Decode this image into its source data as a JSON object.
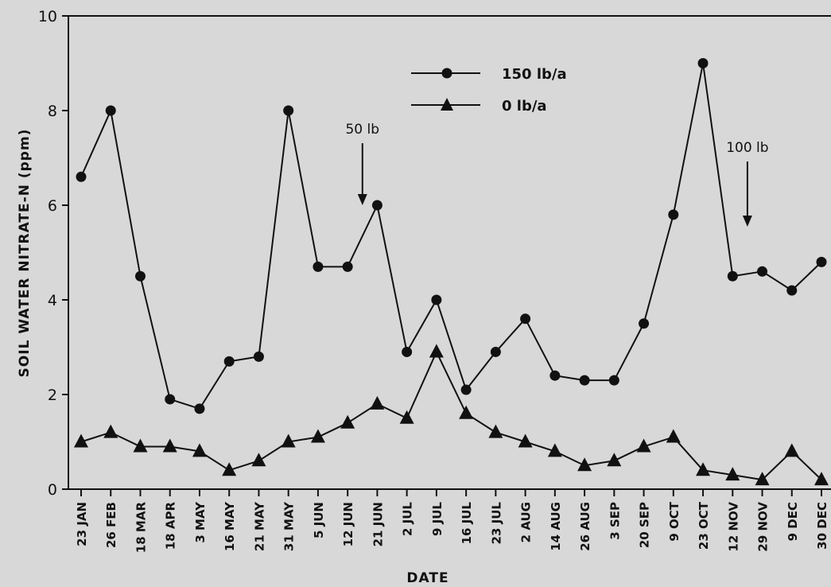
{
  "chart_data": {
    "type": "line",
    "xlabel": "DATE",
    "ylabel": "SOIL WATER NITRATE-N (ppm)",
    "ylim": [
      0,
      10
    ],
    "yticks": [
      0,
      2,
      4,
      6,
      8,
      10
    ],
    "grid": false,
    "legend_position": "top-center",
    "categories": [
      "23 JAN",
      "26 FEB",
      "18 MAR",
      "18 APR",
      "3 MAY",
      "16 MAY",
      "21 MAY",
      "31 MAY",
      "5 JUN",
      "12 JUN",
      "21 JUN",
      "2 JUL",
      "9 JUL",
      "16 JUL",
      "23 JUL",
      "2 AUG",
      "14 AUG",
      "26 AUG",
      "3 SEP",
      "20 SEP",
      "9 OCT",
      "23 OCT",
      "12 NOV",
      "29 NOV",
      "9 DEC",
      "30 DEC"
    ],
    "series": [
      {
        "name": "150 lb/a",
        "marker": "circle",
        "values": [
          6.6,
          8.0,
          4.5,
          1.9,
          1.7,
          2.7,
          2.8,
          8.0,
          4.7,
          4.7,
          6.0,
          2.9,
          4.0,
          2.1,
          2.9,
          3.6,
          2.4,
          2.3,
          2.3,
          3.5,
          5.8,
          9.0,
          4.5,
          4.6,
          4.2,
          4.8
        ]
      },
      {
        "name": "0 lb/a",
        "marker": "triangle",
        "values": [
          1.0,
          1.2,
          0.9,
          0.9,
          0.8,
          0.4,
          0.6,
          1.0,
          1.1,
          1.4,
          1.8,
          1.5,
          2.9,
          1.6,
          1.2,
          1.0,
          0.8,
          0.5,
          0.6,
          0.9,
          1.1,
          0.4,
          0.3,
          0.2,
          0.8,
          0.2
        ]
      }
    ],
    "annotations": [
      {
        "text": "50 lb",
        "between": [
          "12 JUN",
          "21 JUN"
        ]
      },
      {
        "text": "100 lb",
        "between": [
          "12 NOV",
          "29 NOV"
        ]
      }
    ]
  },
  "colors": {
    "ink": "#111111",
    "background": "#d8d8d8"
  }
}
